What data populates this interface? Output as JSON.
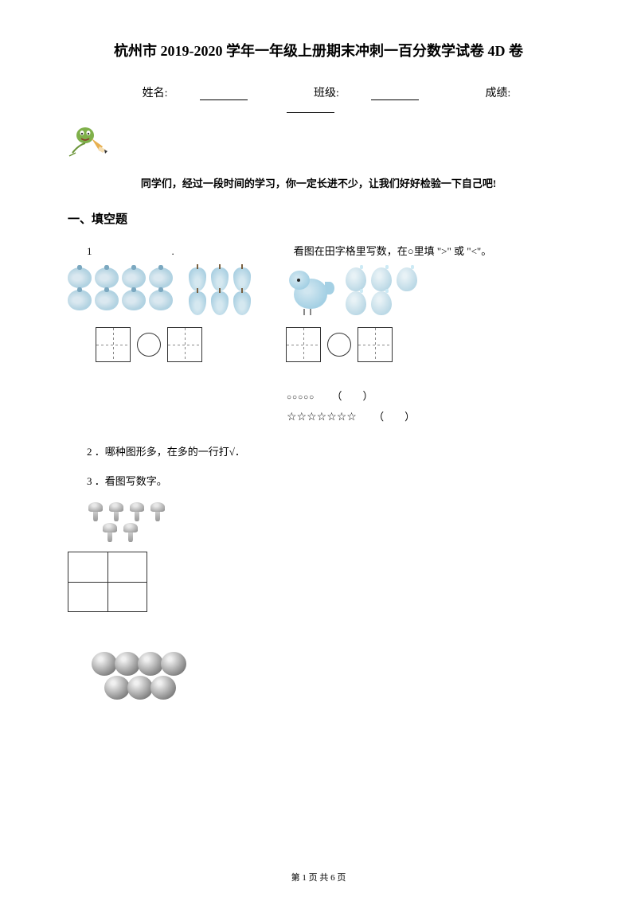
{
  "title": "杭州市 2019-2020 学年一年级上册期末冲刺一百分数学试卷 4D 卷",
  "header": {
    "name_label": "姓名:",
    "class_label": "班级:",
    "score_label": "成绩:"
  },
  "intro": "同学们，经过一段时间的学习，你一定长进不少，让我们好好检验一下自己吧!",
  "section1_title": "一、填空题",
  "q1": {
    "num": "1",
    "dot": ".",
    "text": "看图在田字格里写数，在○里填 \">\" 或 \"<\"。"
  },
  "counts": {
    "tomatoes": 8,
    "pears": 6,
    "birds": 1,
    "eggs": 5,
    "mushrooms_row1": 4,
    "mushrooms_row2": 2,
    "balls_row1": 4,
    "balls_row2": 3
  },
  "shapes": {
    "circles": "○○○○○",
    "circles_paren": "（　　）",
    "stars": "☆☆☆☆☆☆☆",
    "stars_paren": "（　　）"
  },
  "q2": "2 ．哪种图形多，在多的一行打√．",
  "q3": "3 ．看图写数字。",
  "footer": {
    "text_prefix": "第 ",
    "page": "1",
    "text_mid": " 页 共 ",
    "total": "6",
    "text_suffix": " 页"
  },
  "colors": {
    "text": "#000000",
    "background": "#ffffff",
    "fruit_light": "#dae8f0",
    "fruit_dark": "#9ecae0",
    "ball_light": "#f0f0f0",
    "ball_dark": "#555555"
  }
}
